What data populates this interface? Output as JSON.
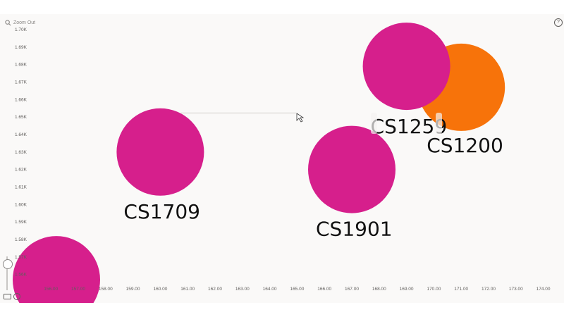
{
  "toolbar": {
    "zoom_out_label": "Zoom Out",
    "help_glyph": "?"
  },
  "colors": {
    "background": "#faf9f8",
    "magenta": "#d61f8c",
    "orange": "#f7730a"
  },
  "chart_data": {
    "type": "scatter",
    "title": "",
    "xlabel": "",
    "ylabel": "",
    "xlim": [
      156.5,
      174.5
    ],
    "ylim": [
      1563,
      1703
    ],
    "x_ticks": [
      "156.00",
      "157.00",
      "158.00",
      "159.00",
      "160.00",
      "161.00",
      "162.00",
      "163.00",
      "164.00",
      "165.00",
      "166.00",
      "167.00",
      "168.00",
      "169.00",
      "170.00",
      "171.00",
      "172.00",
      "173.00",
      "174.00"
    ],
    "y_ticks": [
      "1.56K",
      "1.57K",
      "1.58K",
      "1.59K",
      "1.60K",
      "1.61K",
      "1.62K",
      "1.63K",
      "1.64K",
      "1.65K",
      "1.66K",
      "1.67K",
      "1.68K",
      "1.69K",
      "1.70K"
    ],
    "grid": false,
    "legend": "none",
    "points": [
      {
        "label": "CS1709",
        "x": 160.0,
        "y": 1630,
        "color": "#d61f8c",
        "size": 1.0
      },
      {
        "label": "CS1901",
        "x": 167.0,
        "y": 1620,
        "color": "#d61f8c",
        "size": 1.0
      },
      {
        "label": "CS1200",
        "x": 171.0,
        "y": 1667,
        "color": "#f7730a",
        "size": 1.0
      },
      {
        "label": "CS1259",
        "x": 169.0,
        "y": 1679,
        "color": "#d61f8c",
        "size": 1.0
      },
      {
        "label": "",
        "x": 156.2,
        "y": 1557,
        "color": "#d61f8c",
        "size": 1.0
      }
    ]
  }
}
